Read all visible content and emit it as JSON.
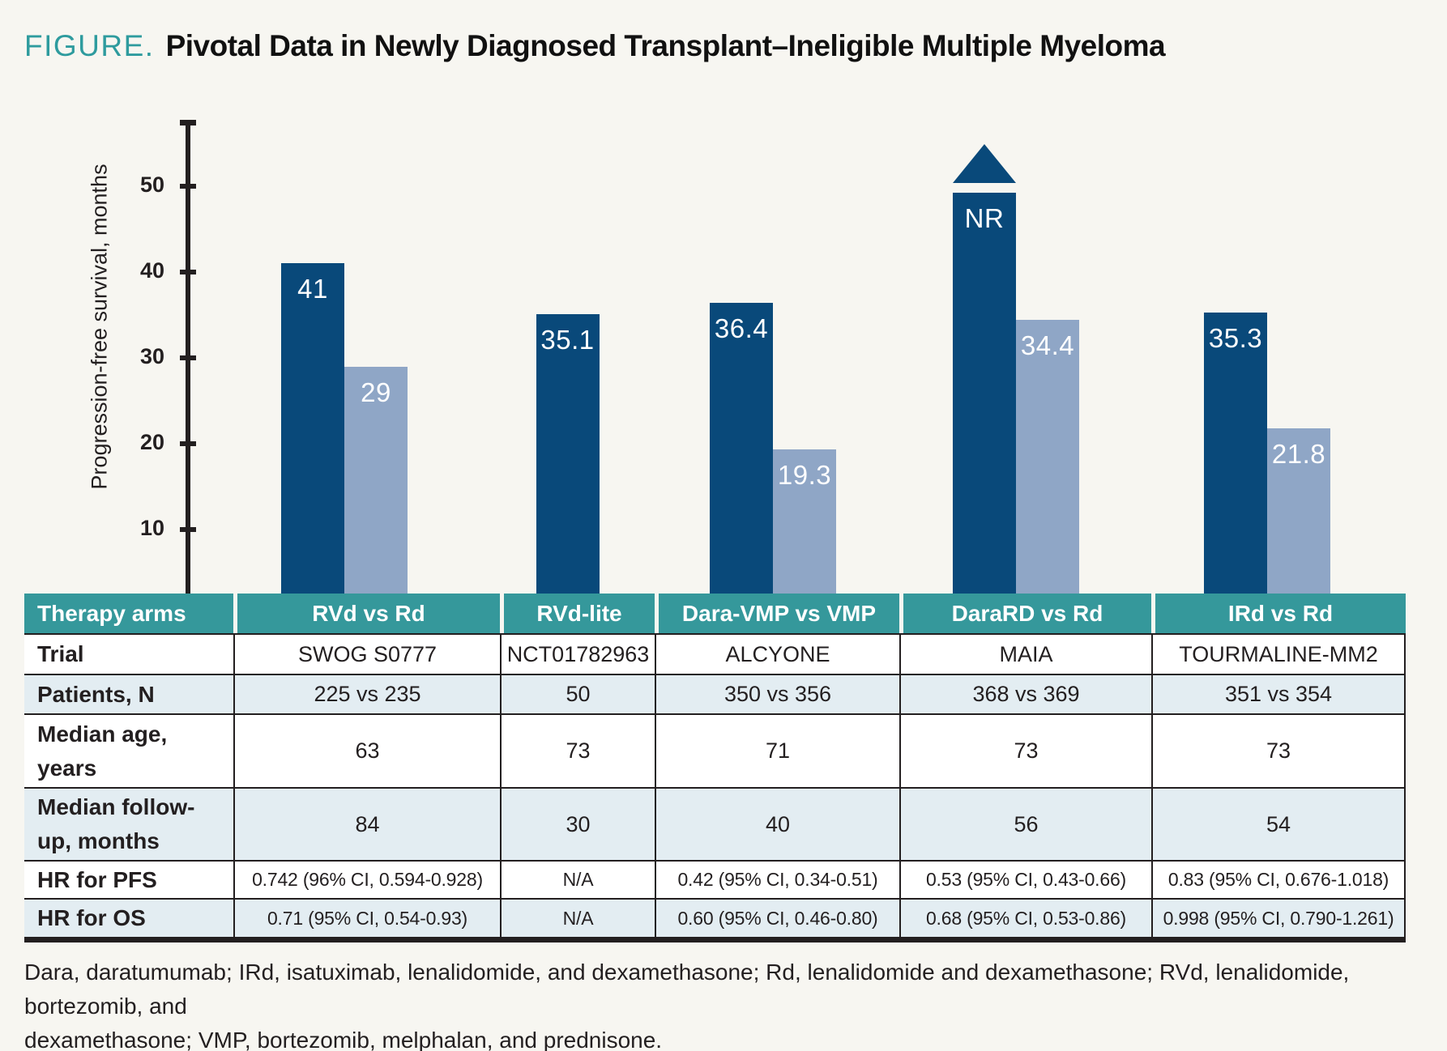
{
  "title": {
    "kicker": "FIGURE.",
    "text": "Pivotal Data in Newly Diagnosed Transplant–Ineligible Multiple Myeloma"
  },
  "colors": {
    "background": "#f7f6f1",
    "dark_bar": "#09497a",
    "light_bar": "#8fa6c6",
    "header_teal": "#35989b",
    "kicker_teal": "#2e9b9e",
    "alt_row": "#e3edf2",
    "ink": "#231f20"
  },
  "chart_data": {
    "type": "bar",
    "ylabel": "Progression-free survival, months",
    "yticks": [
      10,
      20,
      30,
      40,
      50
    ],
    "ylim": [
      0,
      57
    ],
    "grid": false,
    "legend": "none",
    "categories": [
      "RVd vs Rd",
      "RVd-lite",
      "Dara-VMP vs VMP",
      "DaraRD vs Rd",
      "IRd vs Rd"
    ],
    "series": [
      {
        "name": "experimental arm (dark blue)",
        "values": [
          41,
          35.1,
          36.4,
          null,
          35.3
        ],
        "labels": [
          "41",
          "35.1",
          "36.4",
          "NR",
          "35.3"
        ]
      },
      {
        "name": "comparator arm (light blue)",
        "values": [
          29,
          null,
          19.3,
          34.4,
          21.8
        ],
        "labels": [
          "29",
          "",
          "19.3",
          "34.4",
          "21.8"
        ]
      }
    ],
    "annotations": [
      "NR bar (DaraRD) is capped with an upward arrow: median not reached"
    ]
  },
  "table": {
    "header": {
      "label": "Therapy arms",
      "cols": [
        "RVd vs Rd",
        "RVd-lite",
        "Dara-VMP vs VMP",
        "DaraRD vs Rd",
        "IRd vs Rd"
      ]
    },
    "rows": [
      {
        "label": "Trial",
        "small": false,
        "values": [
          "SWOG S0777",
          "NCT01782963",
          "ALCYONE",
          "MAIA",
          "TOURMALINE-MM2"
        ]
      },
      {
        "label": "Patients, N",
        "small": false,
        "values": [
          "225 vs 235",
          "50",
          "350 vs 356",
          "368 vs 369",
          "351 vs 354"
        ]
      },
      {
        "label": "Median age, years",
        "small": false,
        "values": [
          "63",
          "73",
          "71",
          "73",
          "73"
        ]
      },
      {
        "label": "Median follow-up, months",
        "small": false,
        "values": [
          "84",
          "30",
          "40",
          "56",
          "54"
        ]
      },
      {
        "label": "HR for PFS",
        "small": true,
        "values": [
          "0.742 (96% CI, 0.594-0.928)",
          "N/A",
          "0.42 (95% CI, 0.34-0.51)",
          "0.53 (95% CI, 0.43-0.66)",
          "0.83 (95% CI, 0.676-1.018)"
        ]
      },
      {
        "label": "HR for OS",
        "small": true,
        "values": [
          "0.71 (95% CI, 0.54-0.93)",
          "N/A",
          "0.60 (95% CI, 0.46-0.80)",
          "0.68 (95% CI, 0.53-0.86)",
          "0.998 (95% CI, 0.790-1.261)"
        ]
      }
    ]
  },
  "footnote": {
    "lines": [
      "Dara, daratumumab; IRd, isatuximab, lenalidomide, and dexamethasone; Rd, lenalidomide and dexamethasone; RVd, lenalidomide, bortezomib, and",
      "dexamethasone; VMP, bortezomib, melphalan, and prednisone."
    ]
  }
}
